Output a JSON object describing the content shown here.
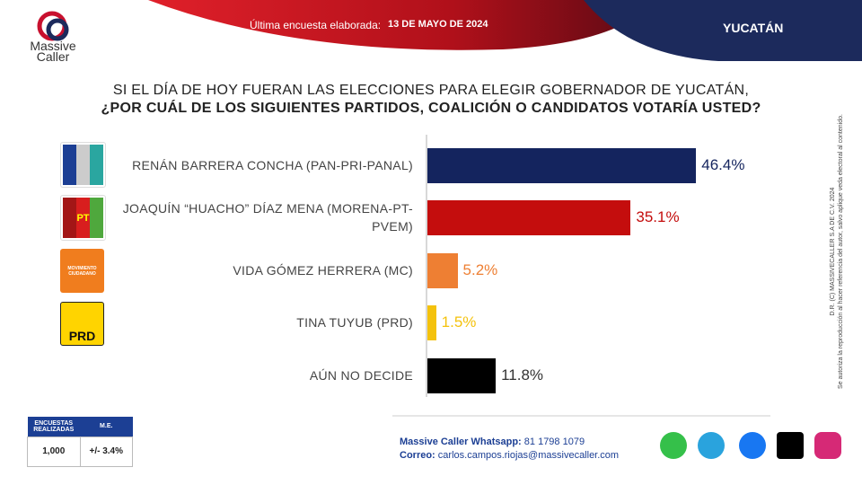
{
  "header": {
    "label": "Última encuesta elaborada:",
    "date": "13 DE MAYO DE 2024",
    "region": "YUCATÁN"
  },
  "logo": {
    "line1": "Massive",
    "line2": "Caller"
  },
  "chart_data": {
    "type": "bar",
    "orientation": "horizontal",
    "title": "SI EL DÍA DE HOY FUERAN LAS ELECCIONES PARA ELEGIR GOBERNADOR DE YUCATÁN,",
    "subtitle": "¿POR CUÁL DE LOS SIGUIENTES PARTIDOS, COALICIÓN  O CANDIDATOS VOTARÍA USTED?",
    "categories": [
      "RENÁN BARRERA CONCHA  (PAN-PRI-PANAL)",
      "JOAQUÍN “HUACHO” DÍAZ MENA  (MORENA-PT-PVEM)",
      "VIDA GÓMEZ HERRERA (MC)",
      "TINA TUYUB (PRD)",
      "AÚN NO DECIDE"
    ],
    "values": [
      46.4,
      35.1,
      5.2,
      1.5,
      11.8
    ],
    "value_labels": [
      "46.4%",
      "35.1%",
      "5.2%",
      "1.5%",
      "11.8%"
    ],
    "colors": [
      "#14245e",
      "#c40d0d",
      "#ee7f33",
      "#f4c20d",
      "#000000"
    ],
    "label_colors": [
      "#14245e",
      "#c40d0d",
      "#ee7f33",
      "#f4c20d",
      "#333333"
    ]
  },
  "party_logos": [
    "",
    "PT",
    "MOVIMIENTO CIUDADANO",
    "PRD"
  ],
  "survey_table": {
    "headers": [
      "ENCUESTAS REALIZADAS",
      "M.E."
    ],
    "rows": [
      [
        "1,000",
        "+/- 3.4%"
      ]
    ]
  },
  "contact": {
    "whatsapp_label": "Massive Caller Whatsapp:",
    "whatsapp": "81 1798 1079",
    "email_label": "Correo:",
    "email": "carlos.campos.riojas@massivecaller.com"
  },
  "copyright": [
    "D.R. (C) MASSIVECALLER S.A DE C.V. 2024",
    "Se autoriza la reproducción al hacer referencia del autor, salvo aplique veda electoral al contenido."
  ]
}
